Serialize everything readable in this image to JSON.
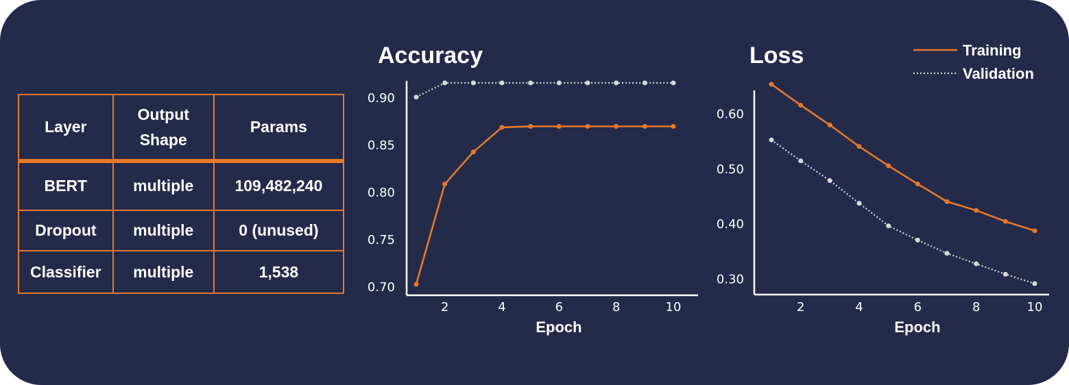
{
  "colors": {
    "background": "#232a4a",
    "training": "#e8792b",
    "validation": "#d9d9d9",
    "text": "#ffffff",
    "table_border": "#e8792b"
  },
  "table": {
    "headers": [
      "Layer",
      "Output\nShape",
      "Params"
    ],
    "rows": [
      [
        "BERT",
        "multiple",
        "109,482,240"
      ],
      [
        "Dropout",
        "multiple",
        "0 (unused)"
      ],
      [
        "Classifier",
        "multiple",
        "1,538"
      ]
    ]
  },
  "chart_data": [
    {
      "type": "line",
      "title": "Accuracy",
      "xlabel": "Epoch",
      "ylabel": "",
      "x": [
        1,
        2,
        3,
        4,
        5,
        6,
        7,
        8,
        9,
        10
      ],
      "xticks": [
        2,
        4,
        6,
        8,
        10
      ],
      "xlim": [
        0.8,
        10.4
      ],
      "ylim": [
        0.69,
        0.915
      ],
      "yticks": [
        0.7,
        0.75,
        0.8,
        0.85,
        0.9
      ],
      "ytick_labels": [
        "0.70",
        "0.75",
        "0.80",
        "0.85",
        "0.90"
      ],
      "series": [
        {
          "name": "Training",
          "style": "solid",
          "values": [
            0.703,
            0.809,
            0.843,
            0.869,
            0.87,
            0.87,
            0.87,
            0.87,
            0.87,
            0.87
          ]
        },
        {
          "name": "Validation",
          "style": "dotted",
          "values": [
            0.901,
            0.916,
            0.916,
            0.916,
            0.916,
            0.916,
            0.916,
            0.916,
            0.916,
            0.916
          ]
        }
      ]
    },
    {
      "type": "line",
      "title": "Loss",
      "xlabel": "Epoch",
      "ylabel": "",
      "x": [
        1,
        2,
        3,
        4,
        5,
        6,
        7,
        8,
        9,
        10
      ],
      "xticks": [
        2,
        4,
        6,
        8,
        10
      ],
      "xlim": [
        0.8,
        10.2
      ],
      "ylim": [
        0.277,
        0.66
      ],
      "yticks": [
        0.3,
        0.4,
        0.5,
        0.6
      ],
      "ytick_labels": [
        "0.30",
        "0.40",
        "0.50",
        "0.60"
      ],
      "legend": {
        "position": "top-right",
        "entries": [
          "Training",
          "Validation"
        ]
      },
      "series": [
        {
          "name": "Training",
          "style": "solid",
          "values": [
            0.654,
            0.616,
            0.58,
            0.541,
            0.506,
            0.473,
            0.441,
            0.425,
            0.405,
            0.388
          ]
        },
        {
          "name": "Validation",
          "style": "dotted",
          "values": [
            0.553,
            0.515,
            0.479,
            0.438,
            0.397,
            0.371,
            0.347,
            0.328,
            0.309,
            0.292
          ]
        }
      ]
    }
  ]
}
